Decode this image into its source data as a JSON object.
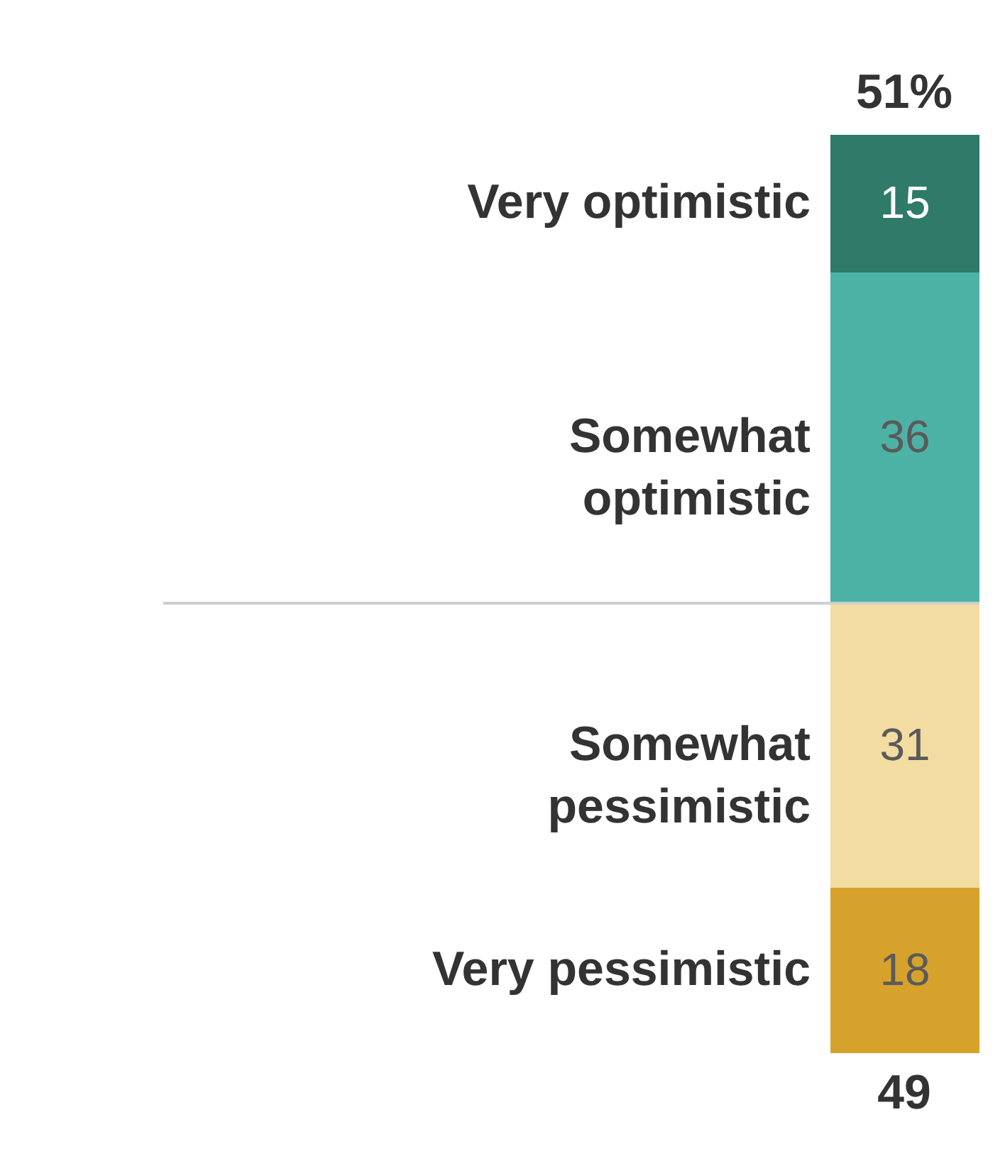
{
  "chart_data": {
    "type": "bar",
    "stacked": true,
    "categories": [
      null
    ],
    "ylim": [
      0,
      100
    ],
    "tick_labels": false,
    "data_labels": true,
    "series": [
      {
        "name": "Very pessimistic",
        "color": "#d6a22c",
        "values": [
          18
        ]
      },
      {
        "name": "Somewhat pessimistic",
        "color": "#f3dca2",
        "values": [
          31
        ]
      },
      {
        "name": "Somewhat optimistic",
        "color": "#4db2a6",
        "values": [
          36
        ]
      },
      {
        "name": "Very optimistic",
        "color": "#2f7a69",
        "values": [
          15
        ]
      }
    ],
    "ref_lines": [
      {
        "axis": "y",
        "value": 49,
        "color": "#cfcfcf"
      }
    ],
    "annotations": [
      {
        "text": "51%",
        "y": 100
      },
      {
        "text": "49",
        "y": 0
      }
    ]
  }
}
